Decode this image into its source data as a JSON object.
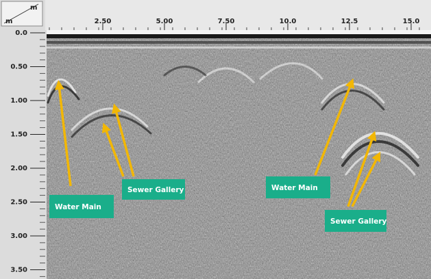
{
  "axes": {
    "corner_top": "m",
    "corner_left": "m",
    "x_ticks": [
      "2.50",
      "5.00",
      "7.50",
      "10.0",
      "12.5",
      "15.0"
    ],
    "y_ticks": [
      "0.0",
      "0.50",
      "1.00",
      "1.50",
      "2.00",
      "2.50",
      "3.00",
      "3.50"
    ]
  },
  "annotations": [
    {
      "label": "Water Main"
    },
    {
      "label": "Sewer Gallery"
    },
    {
      "label": "Water Main"
    },
    {
      "label": "Sewer Gallery"
    }
  ]
}
